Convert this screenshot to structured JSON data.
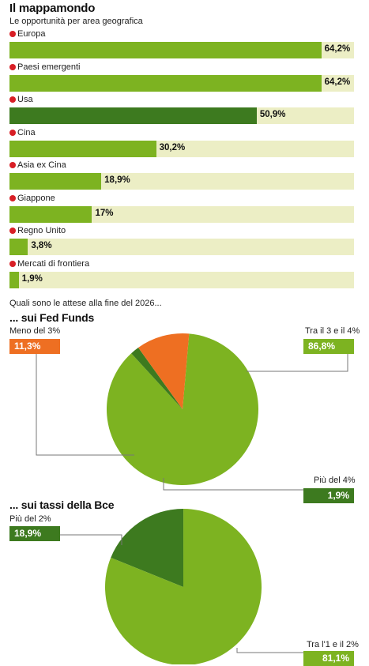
{
  "title": "Il mappamondo",
  "subtitle": "Le opportunità per area geografica",
  "question": "Quali sono le attese alla fine del 2026...",
  "fed": {
    "title": "... sui Fed Funds",
    "labels": {
      "under3": "Meno del 3%",
      "between": "Tra il 3 e il 4%",
      "over4": "Più del 4%"
    },
    "values_text": {
      "under3": "11,3%",
      "between": "86,8%",
      "over4": "1,9%"
    }
  },
  "bce": {
    "title": "... sui tassi della Bce",
    "labels": {
      "over2": "Più del 2%",
      "between": "Tra l'1 e il 2%"
    },
    "values_text": {
      "over2": "18,9%",
      "between": "81,1%"
    }
  },
  "colors": {
    "light_green": "#7db321",
    "dark_green": "#3d7a1f",
    "orange": "#ee6f22",
    "track": "#eceec5",
    "dot_red": "#d81f26"
  },
  "chart_data": [
    {
      "type": "bar",
      "title": "Il mappamondo",
      "subtitle": "Le opportunità per area geografica",
      "orientation": "horizontal",
      "categories": [
        "Europa",
        "Paesi emergenti",
        "Usa",
        "Cina",
        "Asia ex Cina",
        "Giappone",
        "Regno Unito",
        "Mercati di frontiera"
      ],
      "values": [
        64.2,
        64.2,
        50.9,
        30.2,
        18.9,
        17.0,
        3.8,
        1.9
      ],
      "value_labels": [
        "64,2%",
        "64,2%",
        "50,9%",
        "30,2%",
        "18,9%",
        "17%",
        "3,8%",
        "1,9%"
      ],
      "highlight": [
        false,
        false,
        true,
        false,
        false,
        false,
        false,
        false
      ],
      "xlim": [
        0,
        64.2
      ]
    },
    {
      "type": "pie",
      "title": "... sui Fed Funds",
      "labels": [
        "Tra il 3 e il 4%",
        "Più del 4%",
        "Meno del 3%"
      ],
      "values": [
        86.8,
        1.9,
        11.3
      ],
      "colors": [
        "#7db321",
        "#3d7a1f",
        "#ee6f22"
      ]
    },
    {
      "type": "pie",
      "title": "... sui tassi della Bce",
      "labels": [
        "Tra l'1 e il 2%",
        "Più del 2%"
      ],
      "values": [
        81.1,
        18.9
      ],
      "colors": [
        "#7db321",
        "#3d7a1f"
      ]
    }
  ]
}
